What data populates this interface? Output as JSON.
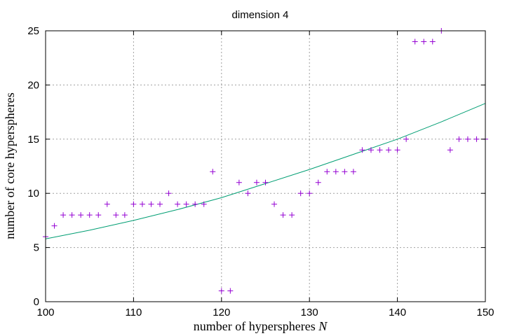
{
  "chart_data": {
    "type": "scatter",
    "title": "dimension 4",
    "xlabel": "number of hyperspheres",
    "xlabel_var": "N",
    "ylabel": "number of core hyperspheres",
    "xlim": [
      100,
      150
    ],
    "ylim": [
      0,
      25
    ],
    "xticks": [
      100,
      110,
      120,
      130,
      140,
      150
    ],
    "yticks": [
      0,
      5,
      10,
      15,
      20,
      25
    ],
    "grid": true,
    "series": [
      {
        "kind": "points",
        "marker": "+",
        "color": "#9400d3",
        "x": [
          100,
          101,
          102,
          103,
          104,
          105,
          106,
          107,
          108,
          109,
          110,
          111,
          112,
          113,
          114,
          115,
          116,
          117,
          118,
          119,
          120,
          121,
          122,
          123,
          124,
          125,
          126,
          127,
          128,
          129,
          130,
          131,
          132,
          133,
          134,
          135,
          136,
          137,
          138,
          139,
          140,
          141,
          142,
          143,
          144,
          145,
          146,
          147,
          148,
          149,
          150
        ],
        "y": [
          6,
          7,
          8,
          8,
          8,
          8,
          8,
          9,
          8,
          8,
          9,
          9,
          9,
          9,
          10,
          9,
          9,
          9,
          9,
          12,
          1,
          1,
          11,
          10,
          11,
          11,
          9,
          8,
          8,
          10,
          10,
          11,
          12,
          12,
          12,
          12,
          14,
          14,
          14,
          14,
          14,
          15,
          24,
          24,
          24,
          25,
          14,
          15,
          15,
          15,
          15
        ]
      },
      {
        "kind": "curve",
        "color": "#009e73",
        "x": [
          100,
          105,
          110,
          115,
          120,
          125,
          130,
          135,
          140,
          145,
          150
        ],
        "y": [
          5.8,
          6.6,
          7.5,
          8.5,
          9.6,
          10.9,
          12.2,
          13.6,
          15.0,
          16.6,
          18.3
        ]
      }
    ]
  }
}
